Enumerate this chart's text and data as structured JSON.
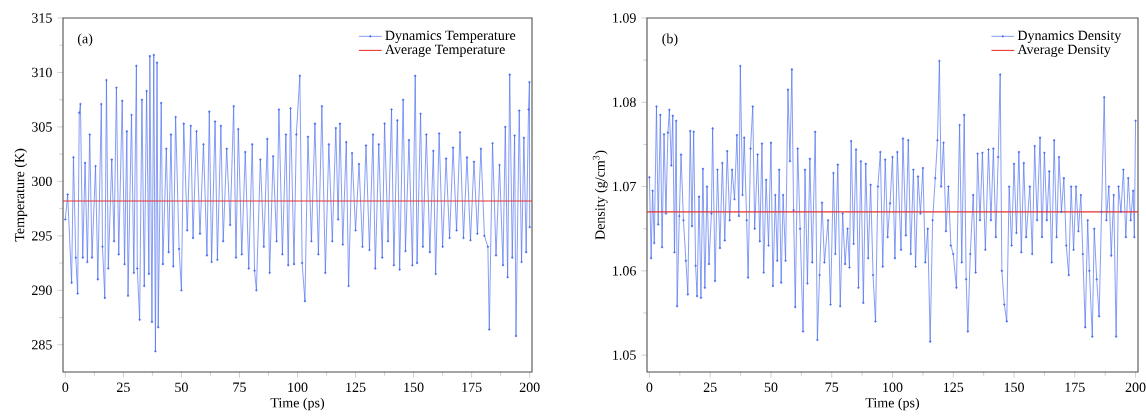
{
  "chart_data": [
    {
      "type": "line",
      "xlabel": "Time (ps)",
      "ylabel": "Temperature (K)",
      "annotations": [
        "(a)"
      ],
      "xlim": [
        -1,
        201
      ],
      "ylim": [
        282.5,
        315
      ],
      "xticks": [
        0,
        25,
        50,
        75,
        100,
        125,
        150,
        175,
        200
      ],
      "yticks": [
        285,
        290,
        295,
        300,
        305,
        310,
        315
      ],
      "legend": "top right",
      "grid": false,
      "line_style": "solid",
      "series": [
        {
          "name": "Dynamics Temperature",
          "color": "#4a6cf0",
          "marker": "circle",
          "x": [
            0,
            1,
            2.7,
            3.5,
            4.5,
            5.3,
            6,
            6.5,
            7.5,
            8.5,
            9.5,
            10.5,
            11.5,
            13,
            14,
            15.5,
            16,
            17,
            17.7,
            18.5,
            20,
            21,
            22,
            23,
            24.5,
            25.5,
            26.5,
            27,
            28.5,
            29.5,
            30.6,
            31,
            32,
            33,
            34,
            35,
            36,
            36.4,
            37.3,
            38.1,
            38.8,
            39.5,
            40,
            41.3,
            42,
            43.5,
            44.5,
            45.5,
            46.5,
            47.5,
            49,
            50,
            51,
            52.5,
            54,
            55,
            56.5,
            58,
            59.5,
            61,
            62,
            63,
            64.5,
            65.5,
            67,
            68,
            69.5,
            71,
            72.5,
            73.5,
            74.5,
            76,
            77.5,
            79,
            80.5,
            81.5,
            82.3,
            84,
            85.5,
            87,
            88,
            89.5,
            91,
            92,
            93.5,
            95,
            96,
            97,
            98.5,
            99.5,
            101,
            102,
            103.2,
            104.5,
            106,
            107.5,
            109,
            110.5,
            112,
            113.5,
            115,
            116.5,
            117.5,
            118.3,
            119.5,
            121,
            122,
            123.5,
            125,
            126.5,
            128,
            129.5,
            131,
            132.5,
            133.5,
            135,
            136.5,
            137.5,
            139,
            140.5,
            141.5,
            143,
            144,
            145.5,
            146.5,
            148,
            149.5,
            150.7,
            151.5,
            153,
            154,
            155.5,
            157,
            158.5,
            159.5,
            161,
            162.5,
            164,
            165.5,
            167,
            168.5,
            170,
            171.5,
            173,
            174.5,
            176,
            177.5,
            179,
            180.5,
            182,
            182.6,
            184,
            185.5,
            187,
            188.5,
            189.5,
            190.5,
            191.4,
            192.5,
            193.5,
            194.1,
            195.5,
            196.5,
            197.5,
            198.5,
            199.5,
            199.9,
            200
          ],
          "values": [
            296.5,
            298.8,
            290.7,
            302.2,
            293,
            289.7,
            306.3,
            307.1,
            293,
            301.7,
            292.6,
            304.3,
            293,
            301.4,
            291,
            307.1,
            294,
            289.3,
            309.3,
            292,
            302,
            294.5,
            308.6,
            293.3,
            307.4,
            292.4,
            304.6,
            289.5,
            306.1,
            291.6,
            310.6,
            292,
            287.3,
            307.5,
            290.4,
            308.3,
            291.5,
            311.5,
            287.1,
            311.6,
            284.4,
            310.9,
            286.6,
            307.2,
            292.4,
            303,
            293.5,
            304.3,
            292.2,
            305.9,
            293.8,
            290,
            305.3,
            295.5,
            305.1,
            294.8,
            304.6,
            295.2,
            303.4,
            293.2,
            306.4,
            292.6,
            305.5,
            292.8,
            305.1,
            294.5,
            303,
            296,
            306.9,
            293,
            304.8,
            293.3,
            302.7,
            292,
            303.4,
            291.8,
            290,
            302,
            294,
            303.9,
            291.6,
            302.3,
            294.5,
            306.6,
            293.3,
            304.3,
            292.3,
            306.7,
            292.4,
            304.3,
            309.7,
            292.5,
            289,
            304.1,
            294.5,
            305.3,
            293.3,
            306.9,
            291.6,
            303.4,
            294.5,
            304.9,
            296.5,
            305.3,
            294.2,
            303.6,
            290.4,
            302.6,
            295.5,
            301.6,
            294,
            303.3,
            293.7,
            304.3,
            292,
            303.4,
            293,
            305.3,
            294.5,
            306.6,
            292.3,
            305.6,
            291.9,
            307.5,
            293.6,
            303.8,
            292.3,
            309.7,
            292.5,
            306.2,
            294,
            304.3,
            293.5,
            302.8,
            291.5,
            304.4,
            294,
            302.1,
            294.8,
            303.1,
            295.5,
            304.5,
            294.8,
            302.2,
            294.6,
            301.8,
            295.2,
            303,
            295,
            294,
            286.4,
            303.5,
            293.2,
            301.5,
            292.3,
            305,
            291.2,
            309.8,
            293,
            304.2,
            285.8,
            306.5,
            292.6,
            304,
            293.5,
            306.6,
            309.1,
            295.8
          ]
        }
      ],
      "ref_lines": [
        {
          "axis": "y",
          "value": 298.2,
          "label": "Average Temperature",
          "color": "#e8312d"
        }
      ]
    },
    {
      "type": "line",
      "xlabel": "Time (ps)",
      "ylabel": "Density (g/cm$^{3}$)",
      "annotations": [
        "(b)"
      ],
      "xlim": [
        -1,
        201
      ],
      "ylim": [
        1.048,
        1.09
      ],
      "xticks": [
        0,
        25,
        50,
        75,
        100,
        125,
        150,
        175,
        200
      ],
      "yticks": [
        1.05,
        1.06,
        1.07,
        1.08,
        1.09
      ],
      "legend": "top right",
      "grid": false,
      "line_style": "solid",
      "series": [
        {
          "name": "Dynamics Density",
          "color": "#4a6cf0",
          "marker": "circle",
          "x": [
            0,
            0.7,
            1.3,
            2,
            2.9,
            3.6,
            4.5,
            5.2,
            6,
            6.8,
            7.6,
            8.2,
            9,
            9.6,
            10.3,
            11,
            11.4,
            12.3,
            13,
            14,
            15,
            15.8,
            16.8,
            17.5,
            18.2,
            19,
            19.6,
            20.4,
            21.2,
            22,
            22.8,
            23.7,
            24.5,
            25.5,
            26,
            27,
            28,
            29,
            30,
            31,
            32,
            33,
            34,
            35,
            36,
            36.8,
            37.4,
            38.3,
            39,
            40,
            40.6,
            41.6,
            42.5,
            43.3,
            44.5,
            45.4,
            46.3,
            47,
            48,
            49,
            50,
            50.8,
            51.8,
            52.6,
            53.4,
            54.2,
            55,
            56,
            57,
            57.8,
            58.6,
            59.3,
            60,
            61,
            62,
            63.2,
            64,
            65,
            66,
            67,
            68.2,
            69.1,
            70,
            71,
            72,
            73.5,
            74.5,
            75.7,
            76.5,
            77.5,
            78.5,
            79.5,
            80.5,
            81.5,
            82.3,
            83,
            84,
            85,
            86,
            87,
            88,
            89,
            90,
            91,
            92,
            93,
            94,
            95,
            96,
            97,
            98,
            99,
            100,
            101,
            102,
            103.5,
            104.3,
            105.5,
            106.5,
            107.5,
            108.6,
            109.5,
            110.5,
            111.5,
            112.5,
            113.5,
            114.5,
            115.5,
            116.5,
            117.6,
            118.5,
            119.3,
            120,
            121,
            122,
            123,
            124,
            125,
            126.3,
            127.6,
            128.5,
            129.5,
            130.3,
            131,
            132,
            133.2,
            134.2,
            135,
            136,
            137,
            138.2,
            139.5,
            140.5,
            141.5,
            142.5,
            143.5,
            144.3,
            145,
            146,
            147,
            148,
            149,
            150,
            151,
            152,
            153,
            154,
            155,
            156.5,
            157.5,
            158.5,
            159.5,
            160.7,
            161.5,
            162.5,
            163.5,
            164.5,
            165.5,
            166.5,
            167.5,
            168.5,
            169.5,
            170.5,
            171.5,
            172.5,
            173.5,
            174.5,
            175.5,
            176.5,
            177.5,
            178.3,
            179.3,
            180.3,
            181,
            182.2,
            183,
            184,
            185,
            186,
            187.1,
            188,
            189,
            190,
            191,
            192,
            193,
            194,
            195,
            196,
            197,
            198,
            199,
            199.5,
            200
          ],
          "values": [
            1.0711,
            1.0615,
            1.0695,
            1.0633,
            1.0795,
            1.0655,
            1.0785,
            1.0628,
            1.0762,
            1.0668,
            1.0764,
            1.0791,
            1.0725,
            1.0784,
            1.0622,
            1.0778,
            1.0558,
            1.0665,
            1.0738,
            1.066,
            1.0612,
            1.0572,
            1.0766,
            1.0653,
            1.0765,
            1.0606,
            1.057,
            1.0688,
            1.0568,
            1.0721,
            1.058,
            1.07,
            1.0608,
            1.0668,
            1.0769,
            1.0588,
            1.072,
            1.0627,
            1.0728,
            1.0636,
            1.0742,
            1.066,
            1.072,
            1.0685,
            1.0761,
            1.0665,
            1.0843,
            1.069,
            1.0758,
            1.066,
            1.0592,
            1.0745,
            1.0795,
            1.065,
            1.0738,
            1.0635,
            1.0751,
            1.0598,
            1.0708,
            1.063,
            1.0752,
            1.0582,
            1.069,
            1.0612,
            1.072,
            1.0586,
            1.069,
            1.0612,
            1.0815,
            1.073,
            1.0839,
            1.0672,
            1.0557,
            1.0745,
            1.065,
            1.0528,
            1.072,
            1.0585,
            1.0733,
            1.061,
            1.0765,
            1.0518,
            1.0595,
            1.0681,
            1.061,
            1.066,
            1.056,
            1.0716,
            1.062,
            1.0726,
            1.0558,
            1.0668,
            1.0608,
            1.065,
            1.0604,
            1.0754,
            1.0632,
            1.0744,
            1.058,
            1.073,
            1.0562,
            1.0727,
            1.0615,
            1.0702,
            1.0595,
            1.054,
            1.07,
            1.0741,
            1.0605,
            1.0732,
            1.064,
            1.068,
            1.0735,
            1.0615,
            1.0741,
            1.0625,
            1.0757,
            1.0642,
            1.0755,
            1.062,
            1.072,
            1.0605,
            1.0712,
            1.0668,
            1.0722,
            1.061,
            1.065,
            1.0516,
            1.066,
            1.071,
            1.0755,
            1.0849,
            1.07,
            1.0752,
            1.0647,
            1.07,
            1.063,
            1.062,
            1.058,
            1.0773,
            1.061,
            1.0785,
            1.059,
            1.0528,
            1.062,
            1.069,
            1.0598,
            1.0739,
            1.066,
            1.074,
            1.0625,
            1.0744,
            1.066,
            1.0745,
            1.064,
            1.0735,
            1.0833,
            1.06,
            1.056,
            1.054,
            1.07,
            1.063,
            1.0727,
            1.0645,
            1.0741,
            1.0622,
            1.0728,
            1.064,
            1.07,
            1.062,
            1.0748,
            1.066,
            1.0758,
            1.064,
            1.074,
            1.066,
            1.0718,
            1.061,
            1.0755,
            1.064,
            1.0735,
            1.067,
            1.071,
            1.063,
            1.0595,
            1.07,
            1.0625,
            1.07,
            1.0647,
            1.069,
            1.062,
            1.0533,
            1.066,
            1.06,
            1.0522,
            1.065,
            1.059,
            1.0546,
            1.067,
            1.0806,
            1.066,
            1.07,
            1.0618,
            1.069,
            1.0522,
            1.07,
            1.067,
            1.072,
            1.064,
            1.071,
            1.066,
            1.0695,
            1.064,
            1.0778
          ]
        }
      ],
      "ref_lines": [
        {
          "axis": "y",
          "value": 1.067,
          "label": "Average Density",
          "color": "#e8312d"
        }
      ]
    }
  ]
}
